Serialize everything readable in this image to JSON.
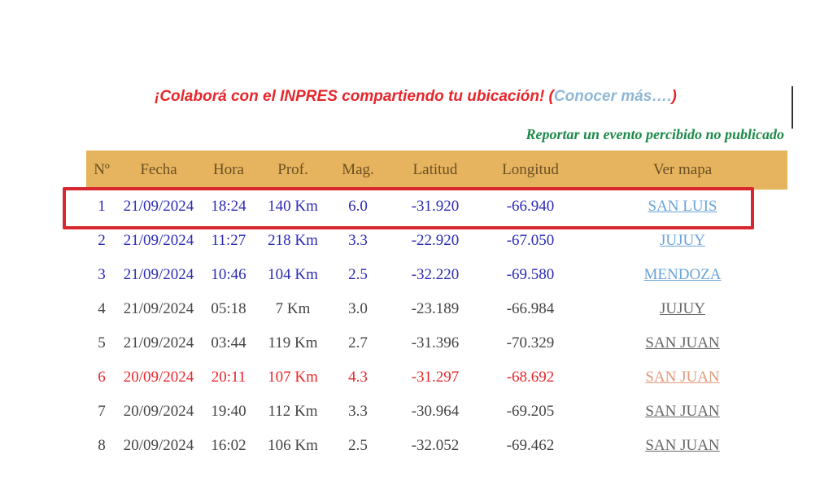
{
  "banner": {
    "text": "¡Colaborá con el INPRES compartiendo tu ubicación! (",
    "link": "Conocer más….",
    "close": ")"
  },
  "report_link": "Reportar un evento percibido no publicado",
  "table": {
    "headers": [
      "Nº",
      "Fecha",
      "Hora",
      "Prof.",
      "Mag.",
      "Latitud",
      "Longitud",
      "Ver mapa"
    ],
    "rows": [
      {
        "n": "1",
        "fecha": "21/09/2024",
        "hora": "18:24",
        "prof": "140 Km",
        "mag": "6.0",
        "lat": "-31.920",
        "lon": "-66.940",
        "mapa": "SAN LUIS"
      },
      {
        "n": "2",
        "fecha": "21/09/2024",
        "hora": "11:27",
        "prof": "218 Km",
        "mag": "3.3",
        "lat": "-22.920",
        "lon": "-67.050",
        "mapa": "JUJUY"
      },
      {
        "n": "3",
        "fecha": "21/09/2024",
        "hora": "10:46",
        "prof": "104 Km",
        "mag": "2.5",
        "lat": "-32.220",
        "lon": "-69.580",
        "mapa": "MENDOZA"
      },
      {
        "n": "4",
        "fecha": "21/09/2024",
        "hora": "05:18",
        "prof": "7 Km",
        "mag": "3.0",
        "lat": "-23.189",
        "lon": "-66.984",
        "mapa": "JUJUY"
      },
      {
        "n": "5",
        "fecha": "21/09/2024",
        "hora": "03:44",
        "prof": "119 Km",
        "mag": "2.7",
        "lat": "-31.396",
        "lon": "-70.329",
        "mapa": "SAN JUAN"
      },
      {
        "n": "6",
        "fecha": "20/09/2024",
        "hora": "20:11",
        "prof": "107 Km",
        "mag": "4.3",
        "lat": "-31.297",
        "lon": "-68.692",
        "mapa": "SAN JUAN"
      },
      {
        "n": "7",
        "fecha": "20/09/2024",
        "hora": "19:40",
        "prof": "112 Km",
        "mag": "3.3",
        "lat": "-30.964",
        "lon": "-69.205",
        "mapa": "SAN JUAN"
      },
      {
        "n": "8",
        "fecha": "20/09/2024",
        "hora": "16:02",
        "prof": "106 Km",
        "mag": "2.5",
        "lat": "-32.052",
        "lon": "-69.462",
        "mapa": "SAN JUAN"
      }
    ]
  },
  "colors": {
    "header_bg": "#e6b45f",
    "highlight_border": "#d7262e",
    "row_blue": "#2a2ab8",
    "row_red": "#e8262b",
    "row_black": "#444444"
  }
}
